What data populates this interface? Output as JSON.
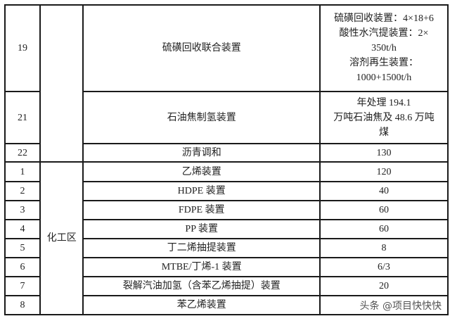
{
  "table": {
    "section1": {
      "area": "",
      "rows": [
        {
          "no": "19",
          "name": "硫磺回收联合装置",
          "capacity_lines": [
            "硫磺回收装置：4×18+6",
            "酸性水汽提装置：2×",
            "350t/h",
            "溶剂再生装置：",
            "1000+1500t/h"
          ]
        },
        {
          "no": "21",
          "name": "石油焦制氢装置",
          "capacity_lines": [
            "年处理 194.1",
            "万吨石油焦及 48.6 万吨",
            "煤"
          ]
        },
        {
          "no": "22",
          "name": "沥青调和",
          "capacity": "130"
        }
      ]
    },
    "section2": {
      "area": "化工区",
      "rows": [
        {
          "no": "1",
          "name": "乙烯装置",
          "capacity": "120"
        },
        {
          "no": "2",
          "name": "HDPE 装置",
          "capacity": "40"
        },
        {
          "no": "3",
          "name": "FDPE 装置",
          "capacity": "60"
        },
        {
          "no": "4",
          "name": "PP 装置",
          "capacity": "60"
        },
        {
          "no": "5",
          "name": "丁二烯抽提装置",
          "capacity": "8"
        },
        {
          "no": "6",
          "name": "MTBE/丁烯-1 装置",
          "capacity": "6/3"
        },
        {
          "no": "7",
          "name": "裂解汽油加氢（含苯乙烯抽提）装置",
          "capacity": "20"
        },
        {
          "no": "8",
          "name": "苯乙烯装置",
          "capacity": ""
        }
      ]
    }
  },
  "watermark": "头条 @项目快快快"
}
